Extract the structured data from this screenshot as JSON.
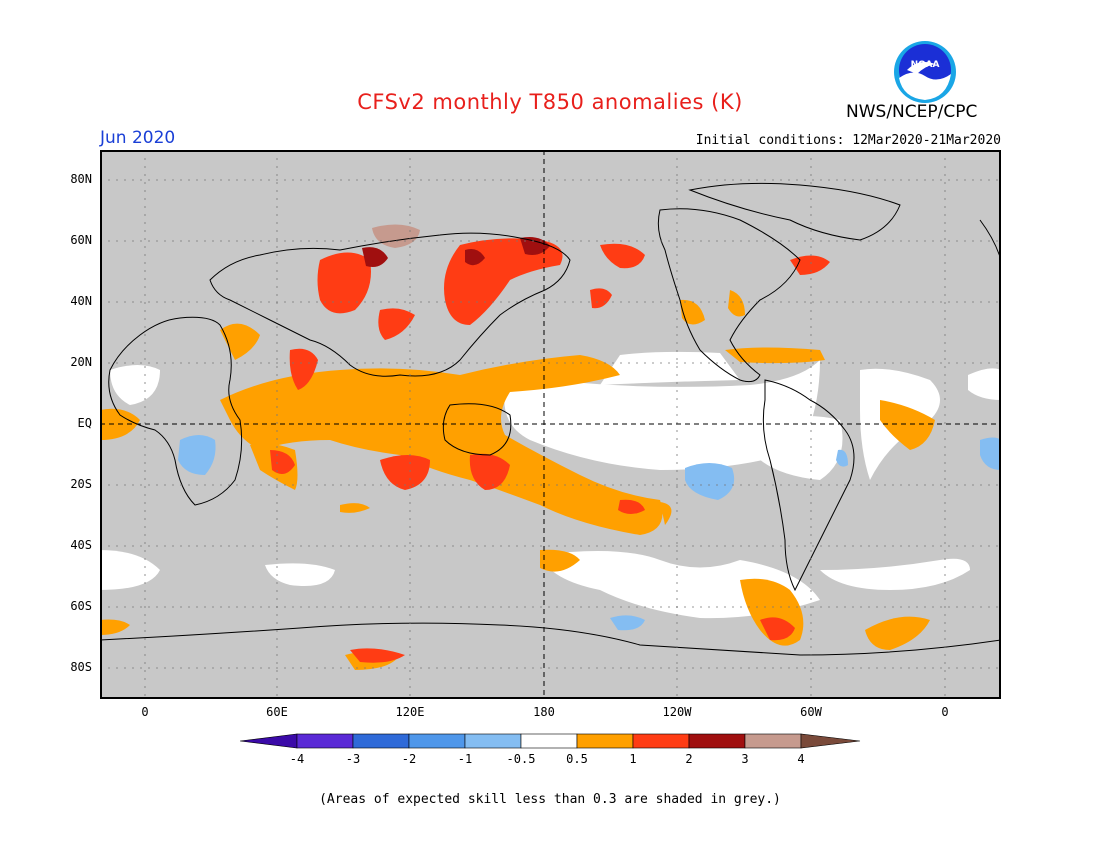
{
  "header": {
    "title": "CFSv2 monthly T850 anomalies (K)",
    "month": "Jun 2020",
    "initial_conditions": "Initial conditions: 12Mar2020-21Mar2020",
    "agency": "NWS/NCEP/CPC",
    "logo_text": "NOAA"
  },
  "map": {
    "lat_labels": [
      "80N",
      "60N",
      "40N",
      "20N",
      "EQ",
      "20S",
      "40S",
      "60S",
      "80S"
    ],
    "lon_labels": [
      "0",
      "60E",
      "120E",
      "180",
      "120W",
      "60W",
      "0"
    ]
  },
  "colorbar": {
    "labels": [
      "-4",
      "-3",
      "-2",
      "-1",
      "-0.5",
      "0.5",
      "1",
      "2",
      "3",
      "4"
    ],
    "colors": [
      "#5a2ad6",
      "#2f6ad8",
      "#4f97ea",
      "#84bdf2",
      "#ffffff",
      "#ffa000",
      "#ff3c14",
      "#a00f0f",
      "#c69a8e"
    ],
    "low_end_color": "#3b0aa8",
    "high_end_color": "#7a4a3a"
  },
  "colors": {
    "grey_low_skill": "#c8c8c8",
    "orange": "#ffa000",
    "red": "#ff3c14",
    "dark_red": "#a00f0f",
    "light_blue": "#84bdf2"
  },
  "footnote": "(Areas of expected skill less than 0.3 are shaded in grey.)"
}
